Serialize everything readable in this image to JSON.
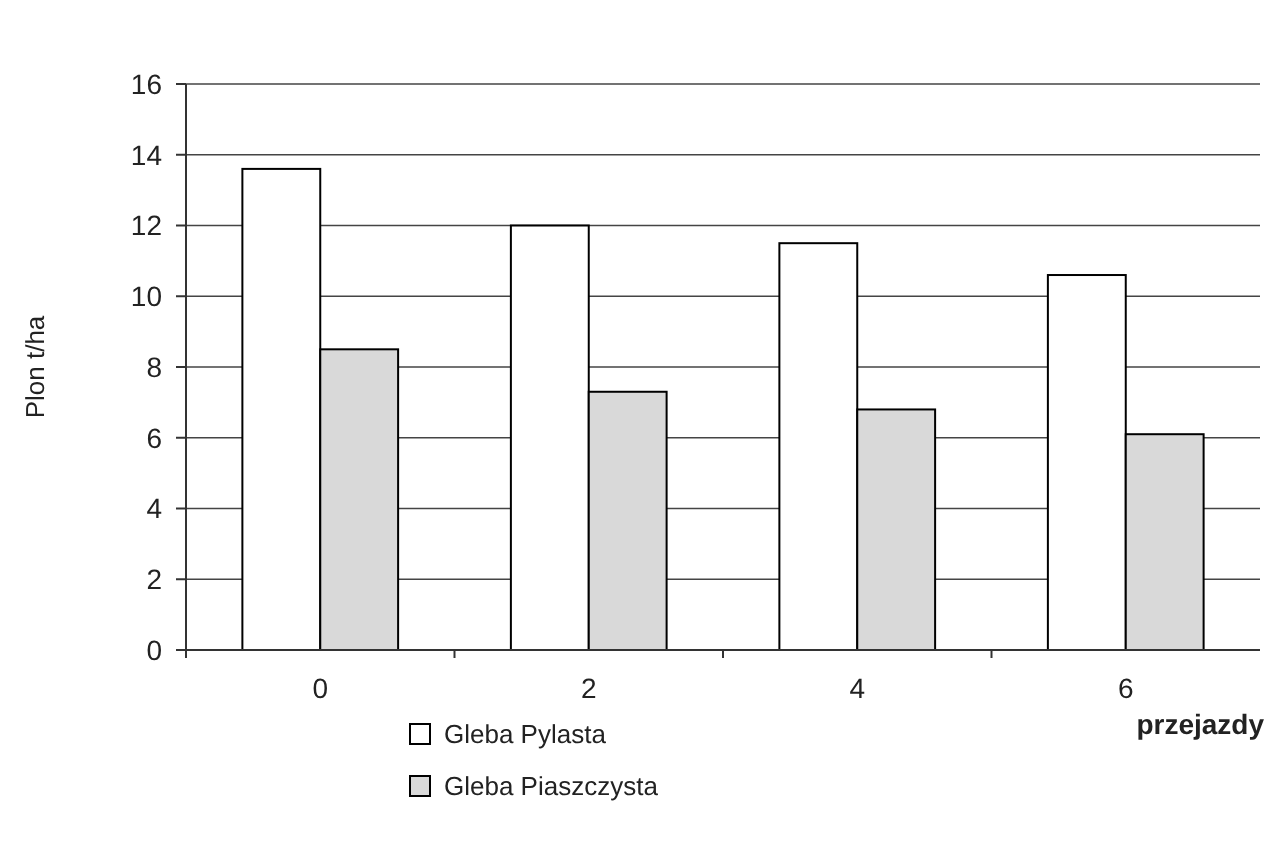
{
  "chart_data": {
    "type": "bar",
    "ylabel": "Plon t/ha",
    "xlabel": "przejazdy",
    "categories": [
      "0",
      "2",
      "4",
      "6"
    ],
    "series": [
      {
        "name": "Gleba Pylasta",
        "color": "#ffffff",
        "values": [
          13.6,
          12.0,
          11.5,
          10.6
        ]
      },
      {
        "name": "Gleba Piaszczysta",
        "color": "#d9d9d9",
        "values": [
          8.5,
          7.3,
          6.8,
          6.1
        ]
      }
    ],
    "ylim": [
      0,
      16
    ],
    "yticks": [
      0,
      2,
      4,
      6,
      8,
      10,
      12,
      14,
      16
    ],
    "grid": "y",
    "legend": "bottom"
  }
}
